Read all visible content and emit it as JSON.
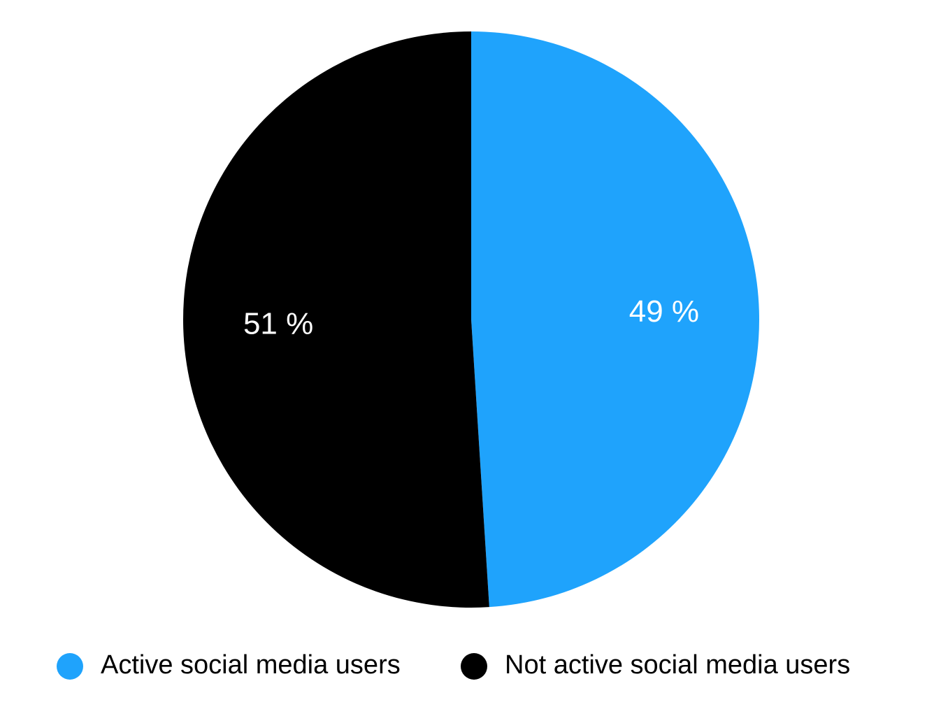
{
  "chart_data": {
    "type": "pie",
    "slices": [
      {
        "label": "Active social media users",
        "value": 49,
        "display": "49 %",
        "color": "#1fa3fc"
      },
      {
        "label": "Not active social media users",
        "value": 51,
        "display": "51 %",
        "color": "#000000"
      }
    ],
    "start_angle": "12 o'clock",
    "direction": "clockwise",
    "legend": {
      "position": "bottom",
      "items": [
        "Active social media users",
        "Not active social media users"
      ]
    }
  }
}
